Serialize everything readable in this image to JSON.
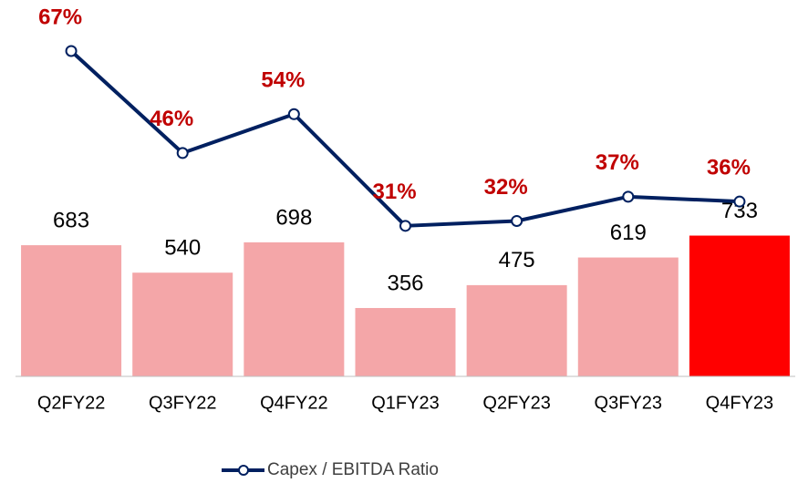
{
  "chart_data": {
    "type": "bar",
    "categories": [
      "Q2FY22",
      "Q3FY22",
      "Q4FY22",
      "Q1FY23",
      "Q2FY23",
      "Q3FY23",
      "Q4FY23"
    ],
    "ylim": [
      0,
      1770
    ],
    "y2lim": [
      0,
      70
    ],
    "legend": "bottom",
    "series": [
      {
        "type": "bar",
        "values": [
          683,
          540,
          698,
          356,
          475,
          619,
          733
        ],
        "colors": [
          "#f4a6a8",
          "#f4a6a8",
          "#f4a6a8",
          "#f4a6a8",
          "#f4a6a8",
          "#f4a6a8",
          "#ff0000"
        ]
      },
      {
        "type": "line",
        "name": "Capex / EBITDA Ratio",
        "axis": "y2",
        "color": "#002060",
        "values": [
          67,
          46,
          54,
          31,
          32,
          37,
          36
        ],
        "value_labels": [
          "67%",
          "46%",
          "54%",
          "31%",
          "32%",
          "37%",
          "36%"
        ]
      }
    ]
  }
}
